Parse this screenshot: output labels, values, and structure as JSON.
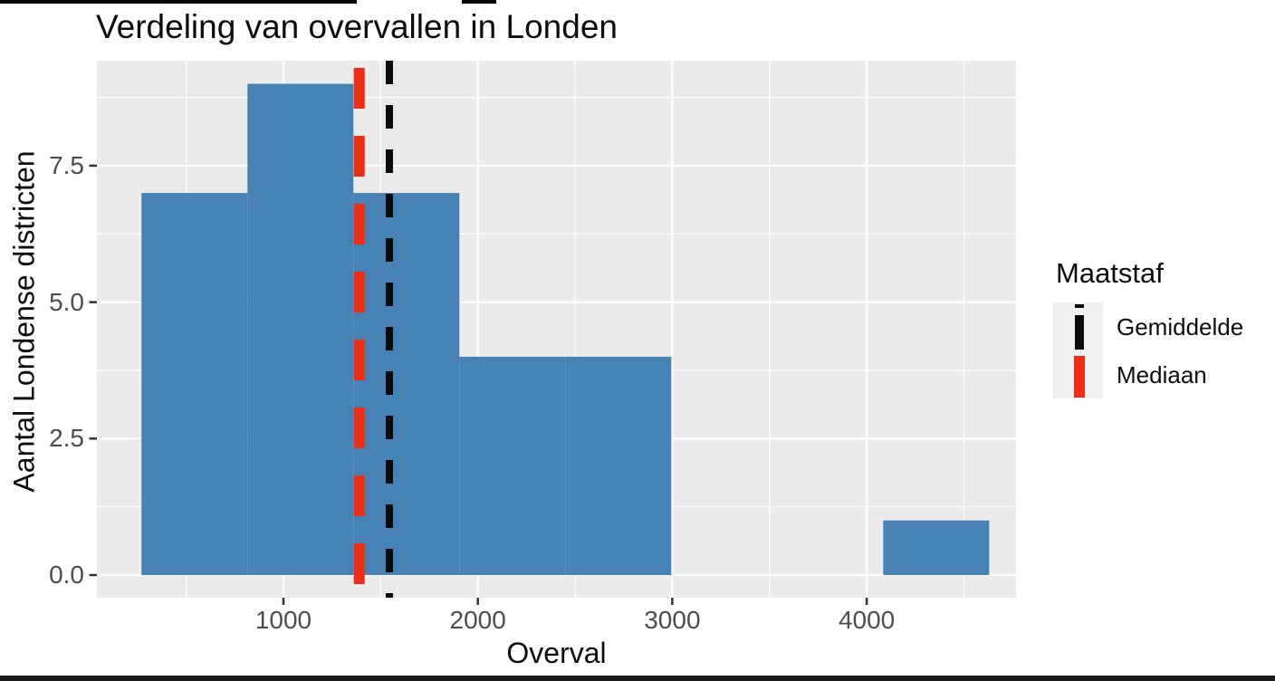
{
  "chart_data": {
    "type": "bar",
    "subtype": "histogram",
    "title": "Verdeling van overvallen in Londen",
    "xlabel": "Overval",
    "ylabel": "Aantal Londense districten",
    "bins": {
      "start": 270,
      "binwidth": 545,
      "edges": [
        270,
        815,
        1360,
        1905,
        2450,
        2995,
        3540,
        4085,
        4630
      ],
      "counts": [
        7,
        9,
        7,
        4,
        4,
        0,
        0,
        1
      ]
    },
    "bar_color": "#4682b4",
    "x_ticks": [
      {
        "value": 1000,
        "label": "1000"
      },
      {
        "value": 2000,
        "label": "2000"
      },
      {
        "value": 3000,
        "label": "3000"
      },
      {
        "value": 4000,
        "label": "4000"
      }
    ],
    "x_minor": [
      500,
      1500,
      2500,
      3500,
      4500
    ],
    "y_ticks": [
      {
        "value": 0,
        "label": "0.0"
      },
      {
        "value": 2.5,
        "label": "2.5"
      },
      {
        "value": 5,
        "label": "5.0"
      },
      {
        "value": 7.5,
        "label": "7.5"
      }
    ],
    "y_minor": [
      1.25,
      3.75,
      6.25,
      8.75
    ],
    "xlim": [
      40,
      4770
    ],
    "ylim": [
      -0.4,
      9.4
    ],
    "grid": true,
    "vlines": [
      {
        "name": "Gemiddelde",
        "value": 1545,
        "color": "#0b0b0b",
        "style": "dashed"
      },
      {
        "name": "Mediaan",
        "value": 1390,
        "color": "#ed2d15",
        "style": "dashed"
      }
    ],
    "legend": {
      "title": "Maatstaf",
      "position": "right",
      "entries": [
        {
          "label": "Gemiddelde",
          "color": "#0b0b0b"
        },
        {
          "label": "Mediaan",
          "color": "#ed2d15"
        }
      ]
    }
  },
  "style": {
    "panel_bg": "#ebebeb",
    "grid_color": "#ffffff",
    "tick_mark_color": "#333333",
    "tick_label_color": "#4d4d4d",
    "text_color": "#0c0c0c"
  }
}
